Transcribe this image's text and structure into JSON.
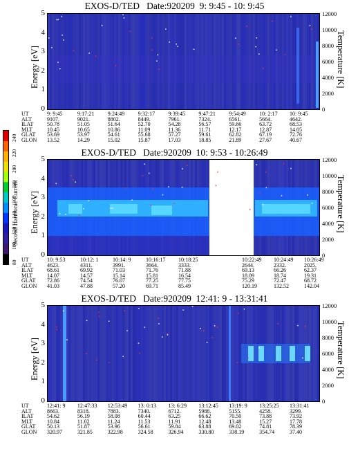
{
  "colorbar": {
    "label": "Second Harmonic Current",
    "ticks": [
      "240",
      "220",
      "200",
      "180",
      "160",
      "140",
      "120",
      "100",
      "80"
    ],
    "colors": [
      "#e00000",
      "#ff6000",
      "#ffb000",
      "#f0e000",
      "#a0ff00",
      "#00d030",
      "#00c8c8",
      "#0090ff",
      "#0038ff",
      "#1818c0",
      "#3020a0",
      "#401870",
      "#000000"
    ]
  },
  "chart_data": [
    {
      "type": "heatmap",
      "title": "EXOS-D/TED   Date:920209  9: 9:45 - 10: 9:45",
      "ylabel": "Energy [eV]",
      "y2label": "Temperature [K]",
      "yticks": [
        "0",
        "1",
        "2",
        "3",
        "4",
        "5"
      ],
      "y2ticks": [
        "0",
        "2000",
        "4000",
        "6000",
        "8000",
        "10000",
        "12000"
      ],
      "ylim": [
        0,
        5
      ],
      "y2lim": [
        0,
        12000
      ],
      "orbit_rows": [
        "UT",
        "ALT",
        "ILAT",
        "MLT",
        "GLAT",
        "GLON"
      ],
      "orbit_columns": [
        [
          "9: 9:45",
          "9107.",
          "50.78",
          "10.45",
          "53.69",
          "13.52"
        ],
        [
          "9:17:21",
          "9021.",
          "51.05",
          "10.65",
          "53.97",
          "14.29"
        ],
        [
          "9:24:49",
          "8802.",
          "51.64",
          "10.86",
          "54.61",
          "15.02"
        ],
        [
          "9:32:17",
          "8449.",
          "52.70",
          "11.09",
          "55.68",
          "15.87"
        ],
        [
          "9:39:45",
          "7961.",
          "54.28",
          "11.36",
          "57.27",
          "17.03"
        ],
        [
          "9:47:21",
          "7324.",
          "56.57",
          "11.71",
          "59.61",
          "18.85"
        ],
        [
          "9:54:49",
          "6561.",
          "59.66",
          "12.17",
          "62.82",
          "21.89"
        ],
        [
          "10: 2:17",
          "5664.",
          "63.72",
          "12.87",
          "67.19",
          "27.67"
        ],
        [
          "10: 9:45",
          "4642.",
          "68.53",
          "14.05",
          "72.76",
          "40.67"
        ]
      ]
    },
    {
      "type": "heatmap",
      "title": "EXOS-D/TED   Date:920209  10: 9:53 - 10:26:49",
      "ylabel": "Energy [eV]",
      "y2label": "Temperature [K]",
      "yticks": [
        "0",
        "1",
        "2",
        "3",
        "4",
        "5"
      ],
      "y2ticks": [
        "0",
        "2000",
        "4000",
        "6000",
        "8000",
        "10000",
        "12000"
      ],
      "ylim": [
        0,
        5
      ],
      "y2lim": [
        0,
        12000
      ],
      "orbit_rows": [
        "UT",
        "ALT",
        "ILAT",
        "MLT",
        "GLAT",
        "GLON"
      ],
      "orbit_columns": [
        [
          "10: 9:53",
          "4623.",
          "68.61",
          "14.07",
          "72.86",
          "41.03"
        ],
        [
          "10:12: 1",
          "4311.",
          "69.92",
          "14.57",
          "74.54",
          "47.88"
        ],
        [
          "10:14: 9",
          "3991.",
          "71.03",
          "15.14",
          "76.07",
          "57.20"
        ],
        [
          "10:16:17",
          "3664.",
          "71.76",
          "15.81",
          "77.25",
          "69.71"
        ],
        [
          "10:18:25",
          "3333.",
          "71.88",
          "16.54",
          "77.75",
          "85.49"
        ],
        [
          "10:22:49",
          "2644.",
          "69.13",
          "18.09",
          "75.29",
          "120.19"
        ],
        [
          "10:24:49",
          "2332.",
          "66.26",
          "18.74",
          "72.47",
          "132.52"
        ],
        [
          "10:26:49",
          "2025.",
          "62.37",
          "19.31",
          "68.72",
          "142.04"
        ]
      ]
    },
    {
      "type": "heatmap",
      "title": "EXOS-D/TED   Date:920209  12:41: 9 - 13:31:41",
      "ylabel": "Energy [eV]",
      "y2label": "Temperature [K]",
      "yticks": [
        "0",
        "1",
        "2",
        "3",
        "4",
        "5"
      ],
      "y2ticks": [
        "0",
        "2000",
        "4000",
        "6000",
        "8000",
        "10000",
        "12000"
      ],
      "ylim": [
        0,
        5
      ],
      "y2lim": [
        0,
        12000
      ],
      "orbit_rows": [
        "UT",
        "ALT",
        "ILAT",
        "MLT",
        "GLAT",
        "GLON"
      ],
      "orbit_columns": [
        [
          "12:41: 9",
          "8663.",
          "54.62",
          "10.84",
          "50.13",
          "320.97"
        ],
        [
          "12:47:33",
          "8318.",
          "56.19",
          "11.02",
          "51.87",
          "321.85"
        ],
        [
          "12:53:49",
          "7883.",
          "58.08",
          "11.24",
          "53.96",
          "322.98"
        ],
        [
          "13: 0:13",
          "7340.",
          "60.44",
          "11.53",
          "56.61",
          "324.58"
        ],
        [
          "13: 6:29",
          "6712.",
          "63.25",
          "11.91",
          "59.84",
          "326.94"
        ],
        [
          "13:12:45",
          "5988.",
          "66.62",
          "12.48",
          "63.88",
          "330.80"
        ],
        [
          "13:19: 9",
          "5155.",
          "70.50",
          "13.48",
          "69.02",
          "338.19"
        ],
        [
          "13:25:25",
          "4258.",
          "73.88",
          "15.27",
          "74.81",
          "354.74"
        ],
        [
          "13:31:41",
          "3299.",
          "73.92",
          "17.78",
          "78.39",
          "37.40"
        ]
      ]
    }
  ]
}
